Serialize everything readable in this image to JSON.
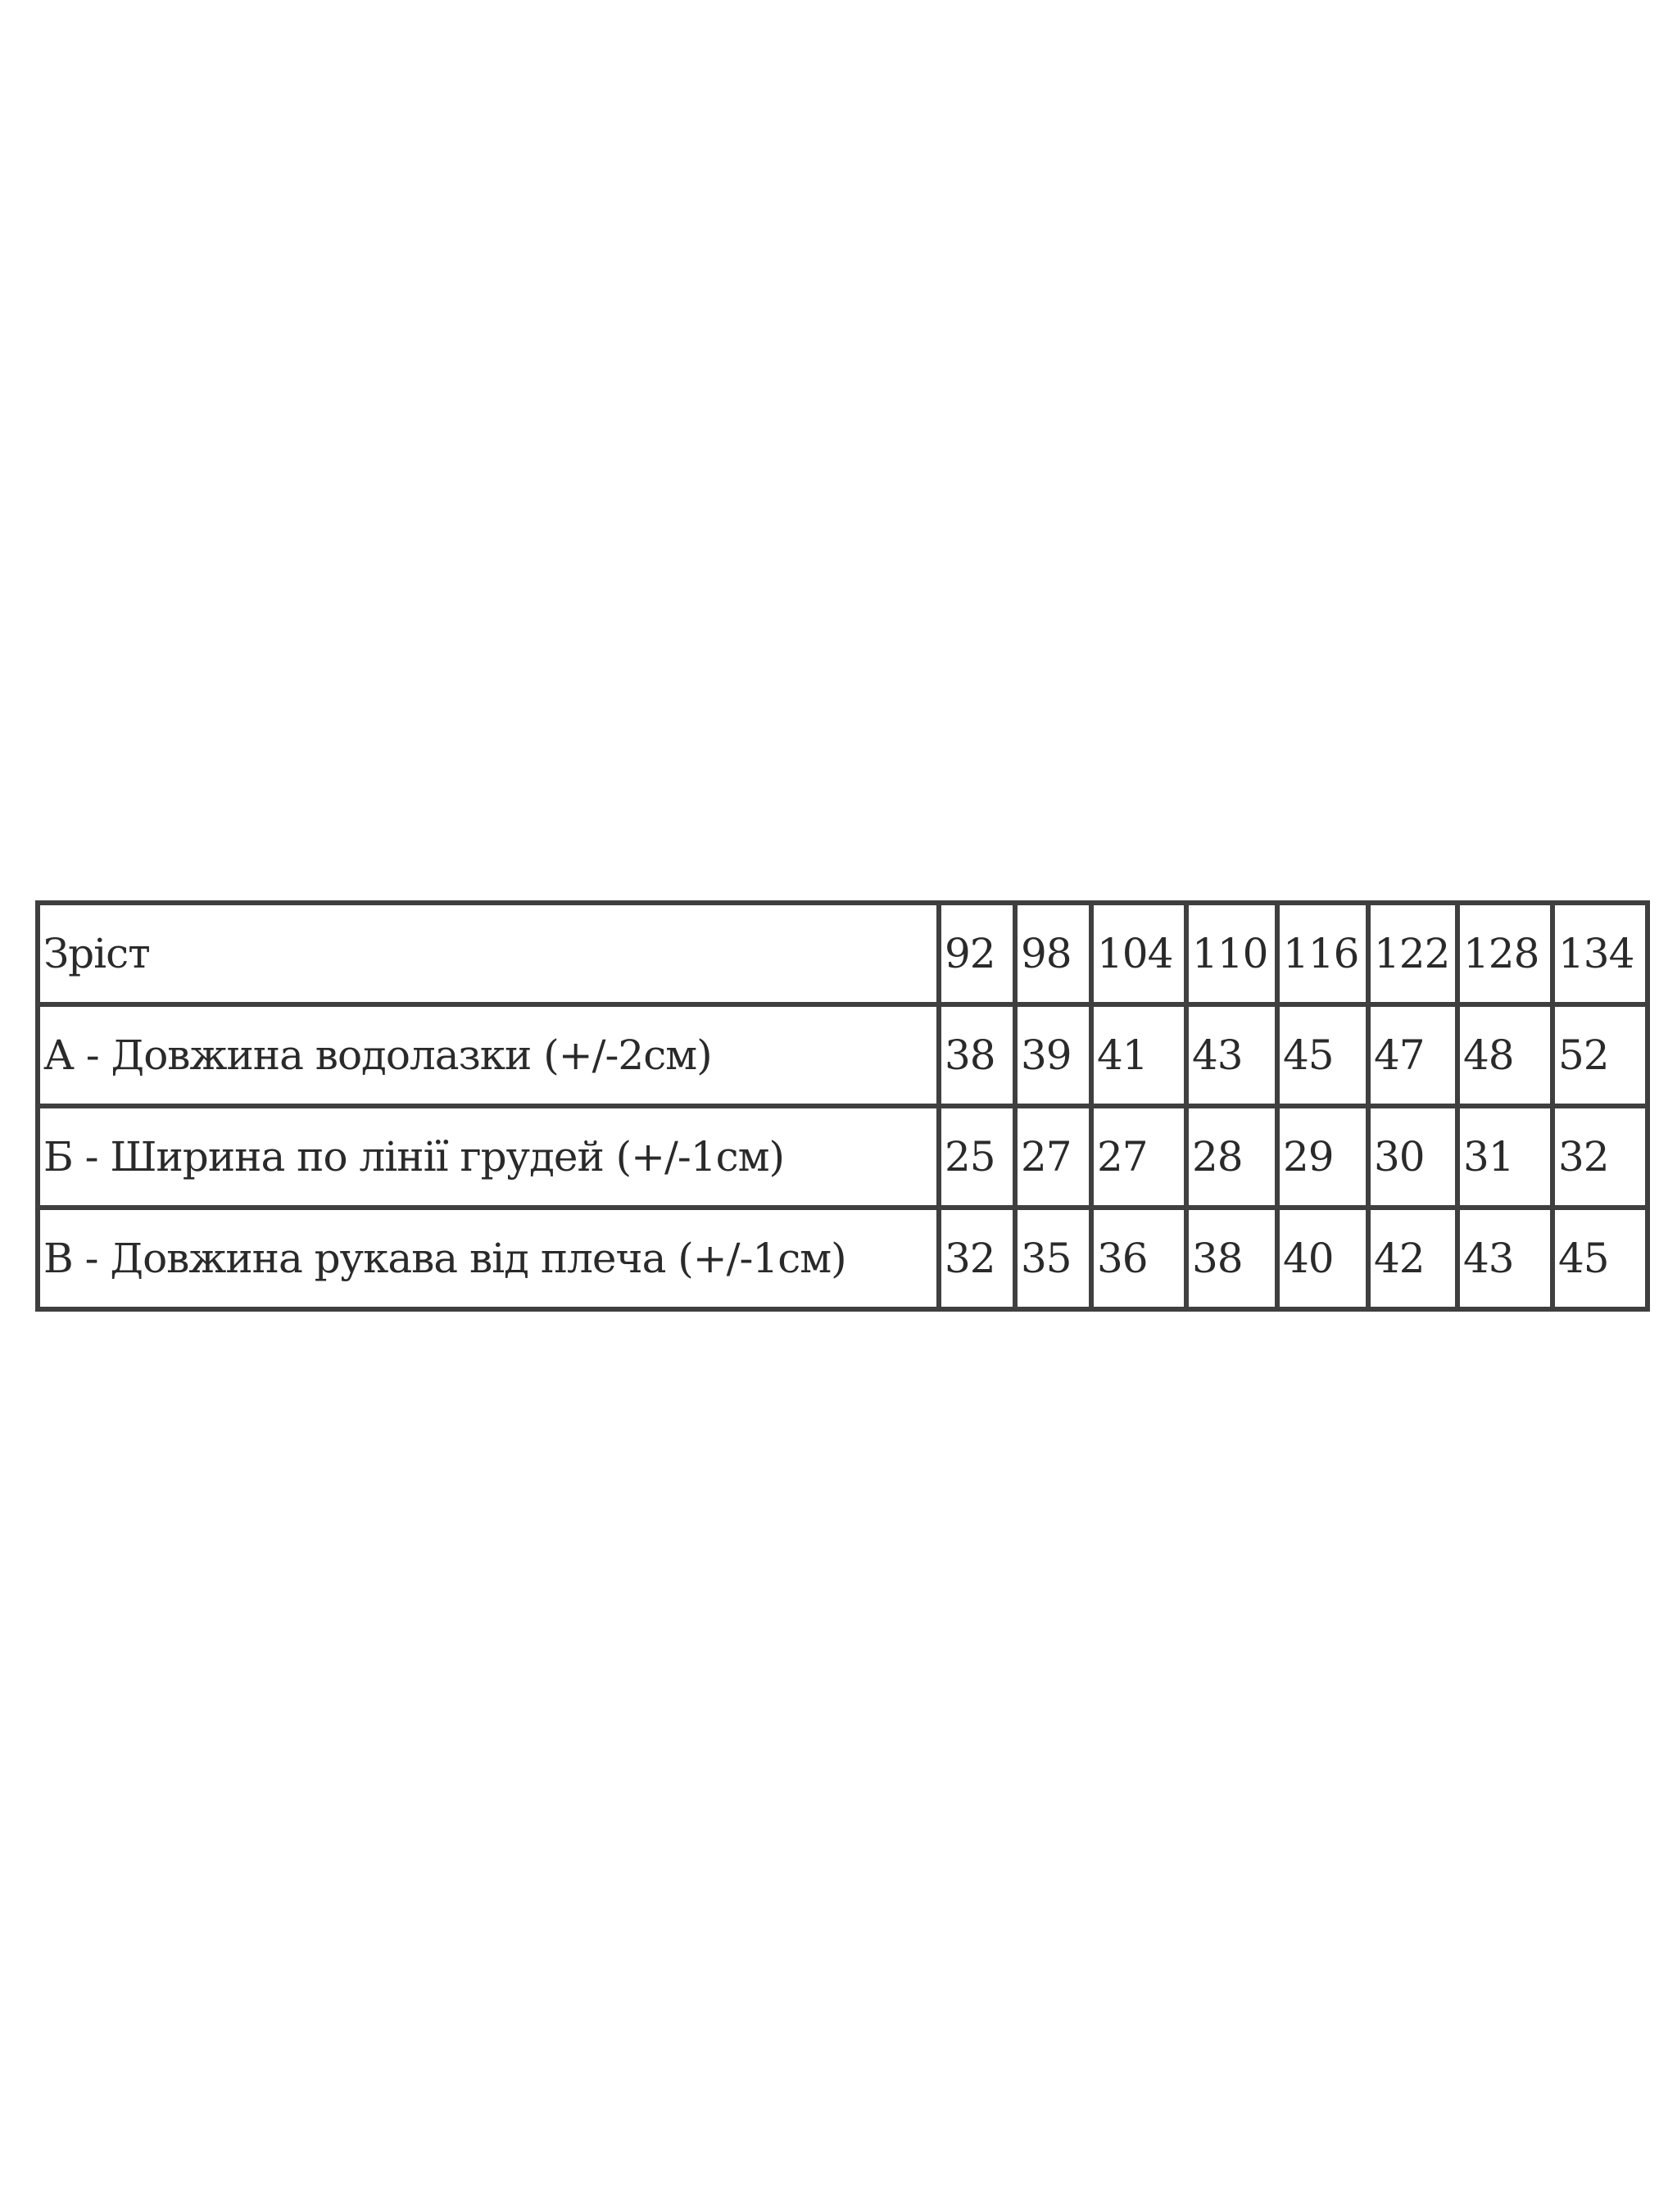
{
  "table": {
    "header": {
      "label": "Зріст",
      "sizes": [
        "92",
        "98",
        "104",
        "110",
        "116",
        "122",
        "128",
        "134"
      ]
    },
    "rows": [
      {
        "label": "А - Довжина водолазки (+/-2см)",
        "values": [
          "38",
          "39",
          "41",
          "43",
          "45",
          "47",
          "48",
          "52"
        ]
      },
      {
        "label": "Б - Ширина по лінії грудей (+/-1см)",
        "values": [
          "25",
          "27",
          "27",
          "28",
          "29",
          "30",
          "31",
          "32"
        ]
      },
      {
        "label": "В - Довжина рукава від плеча (+/-1см)",
        "values": [
          "32",
          "35",
          "36",
          "38",
          "40",
          "42",
          "43",
          "45"
        ]
      }
    ]
  },
  "colors": {
    "border": "#3f3f3f",
    "text": "#2a2a2a",
    "background": "#ffffff"
  }
}
